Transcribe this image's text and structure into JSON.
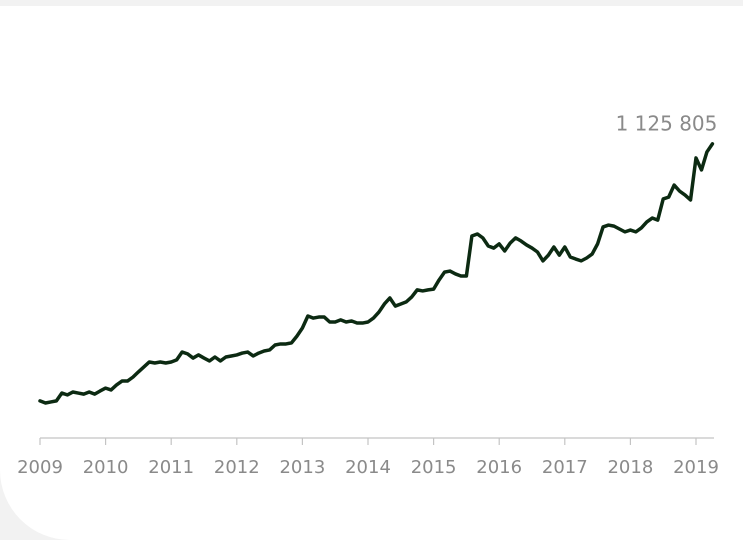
{
  "chart_data": {
    "type": "line",
    "categories": [
      "2009",
      null,
      null,
      null,
      null,
      null,
      null,
      null,
      null,
      null,
      null,
      null,
      "2010",
      null,
      null,
      null,
      null,
      null,
      null,
      null,
      null,
      null,
      null,
      null,
      "2011",
      null,
      null,
      null,
      null,
      null,
      null,
      null,
      null,
      null,
      null,
      null,
      "2012",
      null,
      null,
      null,
      null,
      null,
      null,
      null,
      null,
      null,
      null,
      null,
      "2013",
      null,
      null,
      null,
      null,
      null,
      null,
      null,
      null,
      null,
      null,
      null,
      "2014",
      null,
      null,
      null,
      null,
      null,
      null,
      null,
      null,
      null,
      null,
      null,
      "2015",
      null,
      null,
      null,
      null,
      null,
      null,
      null,
      null,
      null,
      null,
      null,
      "2016",
      null,
      null,
      null,
      null,
      null,
      null,
      null,
      null,
      null,
      null,
      null,
      "2017",
      null,
      null,
      null,
      null,
      null,
      null,
      null,
      null,
      null,
      null,
      null,
      "2018",
      null,
      null,
      null,
      null,
      null,
      null,
      null,
      null,
      null,
      null,
      null,
      "2019",
      null,
      null,
      null
    ],
    "values": [
      142000,
      134000,
      138000,
      142000,
      172000,
      165000,
      176000,
      172000,
      168000,
      176000,
      168000,
      180000,
      191000,
      184000,
      203000,
      218000,
      218000,
      233000,
      253000,
      272000,
      291000,
      287000,
      291000,
      287000,
      291000,
      299000,
      329000,
      322000,
      306000,
      318000,
      306000,
      295000,
      310000,
      295000,
      310000,
      314000,
      318000,
      325000,
      329000,
      314000,
      325000,
      333000,
      337000,
      356000,
      360000,
      360000,
      364000,
      390000,
      421000,
      467000,
      459000,
      463000,
      463000,
      444000,
      444000,
      452000,
      444000,
      448000,
      440000,
      440000,
      444000,
      459000,
      482000,
      513000,
      536000,
      505000,
      513000,
      521000,
      540000,
      567000,
      563000,
      567000,
      570000,
      605000,
      635000,
      639000,
      628000,
      620000,
      620000,
      773000,
      781000,
      766000,
      735000,
      727000,
      743000,
      716000,
      746000,
      766000,
      754000,
      739000,
      727000,
      712000,
      678000,
      700000,
      731000,
      700000,
      731000,
      693000,
      685000,
      678000,
      689000,
      704000,
      743000,
      808000,
      815000,
      811000,
      800000,
      789000,
      796000,
      789000,
      804000,
      827000,
      842000,
      834000,
      915000,
      922000,
      968000,
      945000,
      930000,
      911000,
      1072000,
      1026000,
      1095000,
      1125805
    ],
    "value_labels": [
      null,
      null,
      null,
      null,
      null,
      null,
      null,
      null,
      null,
      null,
      null,
      null,
      null,
      null,
      null,
      null,
      null,
      null,
      null,
      null,
      null,
      null,
      null,
      null,
      null,
      null,
      null,
      null,
      null,
      null,
      null,
      null,
      null,
      null,
      null,
      null,
      null,
      null,
      null,
      null,
      null,
      null,
      null,
      null,
      null,
      null,
      null,
      null,
      null,
      null,
      null,
      null,
      null,
      null,
      null,
      null,
      null,
      null,
      null,
      null,
      null,
      null,
      null,
      null,
      null,
      null,
      null,
      null,
      null,
      null,
      null,
      null,
      null,
      null,
      null,
      null,
      null,
      null,
      null,
      null,
      null,
      null,
      null,
      null,
      null,
      null,
      null,
      null,
      null,
      null,
      null,
      null,
      null,
      null,
      null,
      null,
      null,
      null,
      null,
      null,
      null,
      null,
      null,
      null,
      null,
      null,
      null,
      null,
      null,
      null,
      null,
      null,
      null,
      null,
      null,
      null,
      null,
      null,
      null,
      null,
      null,
      null,
      null,
      "1 125 805"
    ],
    "color": "#0c2a12",
    "ylim": [
      0,
      1600000
    ]
  }
}
